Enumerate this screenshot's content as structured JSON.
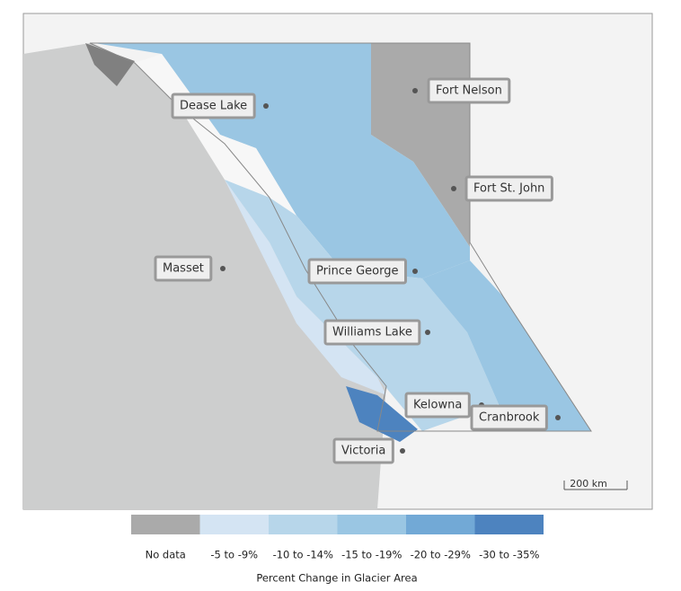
{
  "map": {
    "places": [
      "Dease Lake",
      "Fort Nelson",
      "Fort St. John",
      "Masset",
      "Prince George",
      "Williams Lake",
      "Kelowna",
      "Cranbrook",
      "Victoria"
    ],
    "scale": "200 km"
  },
  "legend": {
    "title": "Percent Change in Glacier Area",
    "items": [
      {
        "label": "No data",
        "color": "#aaaaaa"
      },
      {
        "label": "-5 to -9%",
        "color": "#d4e4f3"
      },
      {
        "label": "-10 to -14%",
        "color": "#b7d6ea"
      },
      {
        "label": "-15 to -19%",
        "color": "#9ac6e3"
      },
      {
        "label": "-20 to -29%",
        "color": "#72a9d6"
      },
      {
        "label": "-30 to -35%",
        "color": "#4d83bf"
      }
    ]
  }
}
